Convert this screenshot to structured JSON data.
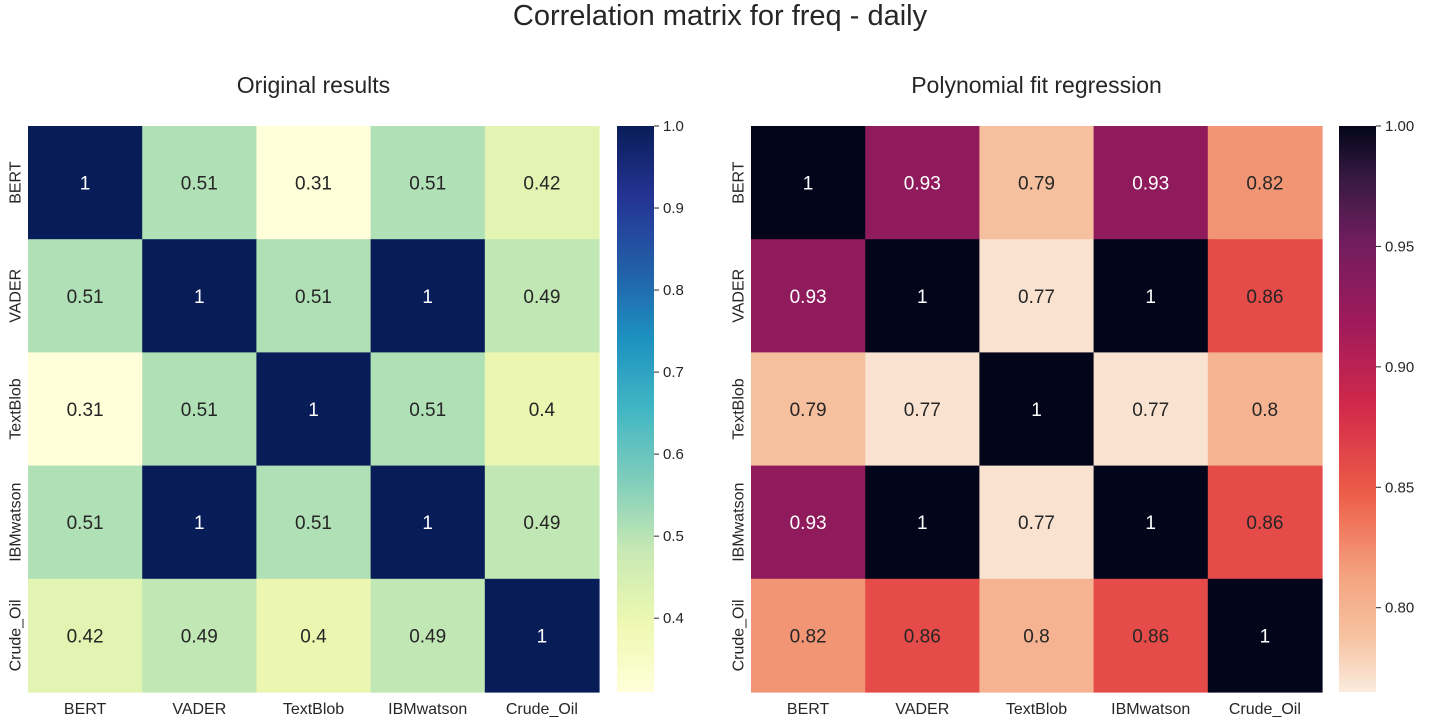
{
  "figure_title": "Correlation matrix for freq - daily",
  "chart_data": [
    {
      "type": "heatmap",
      "title": "Original results",
      "colormap": "YlGnBu",
      "x_labels": [
        "BERT",
        "VADER",
        "TextBlob",
        "IBMwatson",
        "Crude_Oil"
      ],
      "y_labels": [
        "BERT",
        "VADER",
        "TextBlob",
        "IBMwatson",
        "Crude_Oil"
      ],
      "values": [
        [
          1,
          0.51,
          0.31,
          0.51,
          0.42
        ],
        [
          0.51,
          1,
          0.51,
          1,
          0.49
        ],
        [
          0.31,
          0.51,
          1,
          0.51,
          0.4
        ],
        [
          0.51,
          1,
          0.51,
          1,
          0.49
        ],
        [
          0.42,
          0.49,
          0.4,
          0.49,
          1
        ]
      ],
      "annotations": [
        [
          "1",
          "0.51",
          "0.31",
          "0.51",
          "0.42"
        ],
        [
          "0.51",
          "1",
          "0.51",
          "1",
          "0.49"
        ],
        [
          "0.31",
          "0.51",
          "1",
          "0.51",
          "0.4"
        ],
        [
          "0.51",
          "1",
          "0.51",
          "1",
          "0.49"
        ],
        [
          "0.42",
          "0.49",
          "0.4",
          "0.49",
          "1"
        ]
      ],
      "colorbar": {
        "range": [
          0.31,
          1.0
        ],
        "ticks": [
          0.4,
          0.5,
          0.6,
          0.7,
          0.8,
          0.9,
          1.0
        ],
        "tick_labels": [
          "0.4",
          "0.5",
          "0.6",
          "0.7",
          "0.8",
          "0.9",
          "1.0"
        ]
      }
    },
    {
      "type": "heatmap",
      "title": "Polynomial fit regression",
      "colormap": "rocket_r",
      "x_labels": [
        "BERT",
        "VADER",
        "TextBlob",
        "IBMwatson",
        "Crude_Oil"
      ],
      "y_labels": [
        "BERT",
        "VADER",
        "TextBlob",
        "IBMwatson",
        "Crude_Oil"
      ],
      "values": [
        [
          1,
          0.93,
          0.79,
          0.93,
          0.82
        ],
        [
          0.93,
          1,
          0.77,
          1,
          0.86
        ],
        [
          0.79,
          0.77,
          1,
          0.77,
          0.8
        ],
        [
          0.93,
          1,
          0.77,
          1,
          0.86
        ],
        [
          0.82,
          0.86,
          0.8,
          0.86,
          1
        ]
      ],
      "annotations": [
        [
          "1",
          "0.93",
          "0.79",
          "0.93",
          "0.82"
        ],
        [
          "0.93",
          "1",
          "0.77",
          "1",
          "0.86"
        ],
        [
          "0.79",
          "0.77",
          "1",
          "0.77",
          "0.8"
        ],
        [
          "0.93",
          "1",
          "0.77",
          "1",
          "0.86"
        ],
        [
          "0.82",
          "0.86",
          "0.8",
          "0.86",
          "1"
        ]
      ],
      "colorbar": {
        "range": [
          0.765,
          1.0
        ],
        "ticks": [
          0.8,
          0.85,
          0.9,
          0.95,
          1.0
        ],
        "tick_labels": [
          "0.80",
          "0.85",
          "0.90",
          "0.95",
          "1.00"
        ]
      }
    }
  ]
}
